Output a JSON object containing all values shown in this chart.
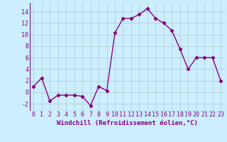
{
  "x": [
    0,
    1,
    2,
    3,
    4,
    5,
    6,
    7,
    8,
    9,
    10,
    11,
    12,
    13,
    14,
    15,
    16,
    17,
    18,
    19,
    20,
    21,
    22,
    23
  ],
  "y": [
    1,
    2.5,
    -1.5,
    -0.5,
    -0.5,
    -0.5,
    -0.7,
    -2.3,
    1,
    0.3,
    10.3,
    12.8,
    12.8,
    13.5,
    14.5,
    12.8,
    12,
    10.7,
    7.5,
    4,
    6,
    6,
    6,
    2
  ],
  "line_color": "#880088",
  "marker": "D",
  "marker_size": 2.2,
  "background_color": "#cceeff",
  "grid_color": "#aacccc",
  "xlabel": "Windchill (Refroidissement éolien,°C)",
  "ylim": [
    -3.2,
    15.5
  ],
  "xlim": [
    -0.5,
    23.5
  ],
  "yticks": [
    -2,
    0,
    2,
    4,
    6,
    8,
    10,
    12,
    14
  ],
  "xticks": [
    0,
    1,
    2,
    3,
    4,
    5,
    6,
    7,
    8,
    9,
    10,
    11,
    12,
    13,
    14,
    15,
    16,
    17,
    18,
    19,
    20,
    21,
    22,
    23
  ],
  "xlabel_fontsize": 6.5,
  "tick_fontsize": 6.0,
  "line_width": 1.0
}
